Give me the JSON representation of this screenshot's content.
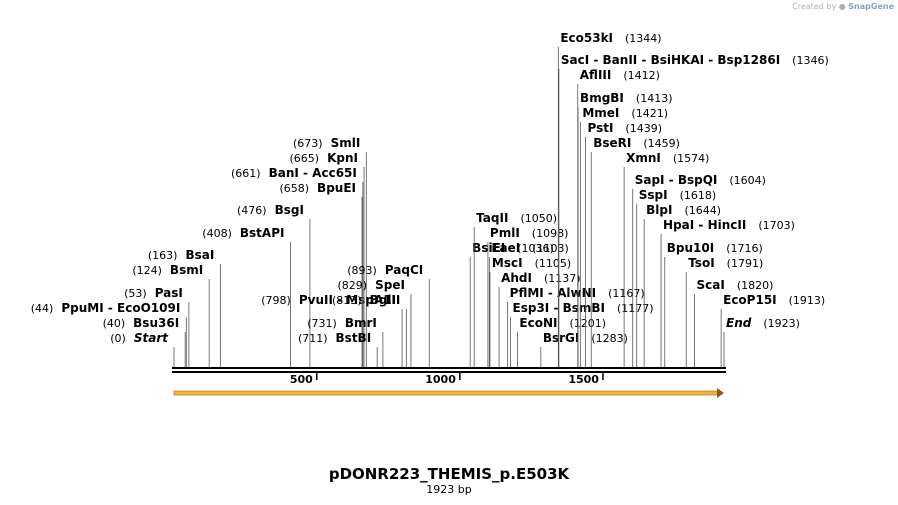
{
  "credit": {
    "prefix": "Created by",
    "brand": "SnapGene"
  },
  "title": "pDONR223_THEMIS_p.E503K",
  "length_label": "1923 bp",
  "colors": {
    "backbone": "#000000",
    "feature": "#f6b43a",
    "feature_outline": "#9a6a10",
    "lines": "#555555"
  },
  "ticks": [
    {
      "pos": 500,
      "label": "500"
    },
    {
      "pos": 1000,
      "label": "1000"
    },
    {
      "pos": 1500,
      "label": "1500"
    }
  ],
  "feature_arrow": {
    "start": 1,
    "end": 1923,
    "direction": "forward"
  },
  "labels": [
    {
      "text": "Start",
      "pos": "(0)",
      "cut": 1,
      "style": "end",
      "pos_left": true
    },
    {
      "text": "Bsu36I",
      "pos": "(40)",
      "cut": 40,
      "pos_left": true
    },
    {
      "text": "PpuMI  - EcoO109I",
      "pos": "(44)",
      "cut": 44,
      "pos_left": true
    },
    {
      "text": "PasI",
      "pos": "(53)",
      "cut": 53,
      "pos_left": true
    },
    {
      "text": "BsmI",
      "pos": "(124)",
      "cut": 124,
      "pos_left": true
    },
    {
      "text": "BsaI",
      "pos": "(163)",
      "cut": 163,
      "pos_left": true
    },
    {
      "text": "BstAPI",
      "pos": "(408)",
      "cut": 408,
      "pos_left": true
    },
    {
      "text": "BsgI",
      "pos": "(476)",
      "cut": 476,
      "pos_left": true
    },
    {
      "text": "PvuII  - MspA1I",
      "pos": "(798)",
      "cut": 798,
      "pos_left": true
    },
    {
      "text": "BpuEI",
      "pos": "(658)",
      "cut": 658,
      "pos_left": true
    },
    {
      "text": "BanI  - Acc65I",
      "pos": "(661)",
      "cut": 661,
      "pos_left": true
    },
    {
      "text": "KpnI",
      "pos": "(665)",
      "cut": 665,
      "pos_left": true
    },
    {
      "text": "SmlI",
      "pos": "(673)",
      "cut": 673,
      "pos_left": true
    },
    {
      "text": "BstBI",
      "pos": "(711)",
      "cut": 711,
      "pos_left": true
    },
    {
      "text": "BmrI",
      "pos": "(731)",
      "cut": 731,
      "pos_left": true
    },
    {
      "text": "BglII",
      "pos": "(813)",
      "cut": 813,
      "pos_left": true
    },
    {
      "text": "SpeI",
      "pos": "(829)",
      "cut": 829,
      "pos_left": true
    },
    {
      "text": "PaqCI",
      "pos": "(893)",
      "cut": 893,
      "pos_left": true
    },
    {
      "text": "BsiEI",
      "pos": "(1036)",
      "cut": 1036,
      "pos_left": false
    },
    {
      "text": "TaqII",
      "pos": "(1050)",
      "cut": 1050,
      "pos_left": false
    },
    {
      "text": "PmlI",
      "pos": "(1098)",
      "cut": 1098,
      "pos_left": false
    },
    {
      "text": "EaeI",
      "pos": "(1103)",
      "cut": 1103,
      "pos_left": false
    },
    {
      "text": "MscI",
      "pos": "(1105)",
      "cut": 1105,
      "pos_left": false
    },
    {
      "text": "AhdI",
      "pos": "(1137)",
      "cut": 1137,
      "pos_left": false
    },
    {
      "text": "PflMI  - AlwNI",
      "pos": "(1167)",
      "cut": 1167,
      "pos_left": false
    },
    {
      "text": "Esp3I  - BsmBI",
      "pos": "(1177)",
      "cut": 1177,
      "pos_left": false
    },
    {
      "text": "EcoNI",
      "pos": "(1201)",
      "cut": 1201,
      "pos_left": false
    },
    {
      "text": "BsrGI",
      "pos": "(1283)",
      "cut": 1283,
      "pos_left": false
    },
    {
      "text": "Eco53kI",
      "pos": "(1344)",
      "cut": 1344,
      "pos_left": false
    },
    {
      "text": "SacI  - BanII  - BsiHKAI  - Bsp1286I",
      "pos": "(1346)",
      "cut": 1346,
      "pos_left": false
    },
    {
      "text": "AflIII",
      "pos": "(1412)",
      "cut": 1412,
      "pos_left": false
    },
    {
      "text": "BmgBI",
      "pos": "(1413)",
      "cut": 1413,
      "pos_left": false
    },
    {
      "text": "MmeI",
      "pos": "(1421)",
      "cut": 1421,
      "pos_left": false
    },
    {
      "text": "PstI",
      "pos": "(1439)",
      "cut": 1439,
      "pos_left": false
    },
    {
      "text": "BseRI",
      "pos": "(1459)",
      "cut": 1459,
      "pos_left": false
    },
    {
      "text": "XmnI",
      "pos": "(1574)",
      "cut": 1574,
      "pos_left": false
    },
    {
      "text": "SapI  - BspQI",
      "pos": "(1604)",
      "cut": 1604,
      "pos_left": false
    },
    {
      "text": "SspI",
      "pos": "(1618)",
      "cut": 1618,
      "pos_left": false
    },
    {
      "text": "BlpI",
      "pos": "(1644)",
      "cut": 1644,
      "pos_left": false
    },
    {
      "text": "HpaI  - HincII",
      "pos": "(1703)",
      "cut": 1703,
      "pos_left": false
    },
    {
      "text": "Bpu10I",
      "pos": "(1716)",
      "cut": 1716,
      "pos_left": false
    },
    {
      "text": "TsoI",
      "pos": "(1791)",
      "cut": 1791,
      "pos_left": false
    },
    {
      "text": "ScaI",
      "pos": "(1820)",
      "cut": 1820,
      "pos_left": false
    },
    {
      "text": "EcoP15I",
      "pos": "(1913)",
      "cut": 1913,
      "pos_left": false
    },
    {
      "text": "End",
      "pos": "(1923)",
      "cut": 1923,
      "style": "end",
      "pos_left": false
    }
  ]
}
